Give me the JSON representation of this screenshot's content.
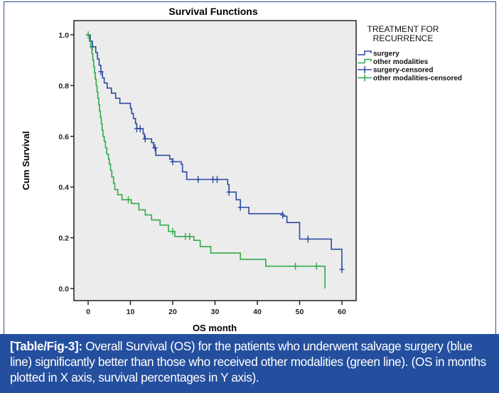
{
  "chart_data": {
    "type": "line",
    "subtype": "kaplan-meier-step",
    "title": "Survival Functions",
    "xlabel": "OS month",
    "ylabel": "Cum Survival",
    "xlim": [
      -3,
      63
    ],
    "ylim": [
      -0.05,
      1.05
    ],
    "xticks": [
      0,
      10,
      20,
      30,
      40,
      50,
      60
    ],
    "xtick_labels": [
      "0",
      "10",
      "20",
      "30",
      "40",
      "50",
      "60"
    ],
    "yticks": [
      0.0,
      0.2,
      0.4,
      0.6,
      0.8,
      1.0
    ],
    "ytick_labels": [
      "0.0",
      "0.2",
      "0.4",
      "0.6",
      "0.8",
      "1.0"
    ],
    "grid": false,
    "legend": {
      "title": "TREATMENT FOR RECURRENCE",
      "position": "right",
      "entries": [
        {
          "label": "surgery",
          "kind": "step",
          "color": "#2b4aa0"
        },
        {
          "label": "other modalities",
          "kind": "step",
          "color": "#2eaa4a"
        },
        {
          "label": "surgery-censored",
          "kind": "censor",
          "color": "#2b4aa0"
        },
        {
          "label": "other modalities-censored",
          "kind": "censor",
          "color": "#2eaa4a"
        }
      ]
    },
    "series": [
      {
        "name": "surgery",
        "color": "#2b4aa0",
        "steps": [
          [
            0,
            1.0
          ],
          [
            0.5,
            0.975
          ],
          [
            1,
            0.953
          ],
          [
            1.8,
            0.93
          ],
          [
            2.2,
            0.905
          ],
          [
            2.6,
            0.88
          ],
          [
            3.0,
            0.855
          ],
          [
            3.4,
            0.83
          ],
          [
            3.8,
            0.81
          ],
          [
            4.5,
            0.79
          ],
          [
            5.5,
            0.77
          ],
          [
            6.5,
            0.75
          ],
          [
            7.5,
            0.73
          ],
          [
            10.0,
            0.71
          ],
          [
            10.3,
            0.69
          ],
          [
            10.7,
            0.67
          ],
          [
            11.2,
            0.65
          ],
          [
            11.5,
            0.63
          ],
          [
            13.0,
            0.61
          ],
          [
            13.3,
            0.59
          ],
          [
            15.0,
            0.575
          ],
          [
            15.5,
            0.555
          ],
          [
            16.0,
            0.525
          ],
          [
            19.3,
            0.51
          ],
          [
            20.0,
            0.5
          ],
          [
            22.0,
            0.49
          ],
          [
            22.3,
            0.46
          ],
          [
            23.3,
            0.43
          ],
          [
            33.0,
            0.41
          ],
          [
            33.3,
            0.38
          ],
          [
            35.0,
            0.35
          ],
          [
            36.0,
            0.32
          ],
          [
            38.0,
            0.295
          ],
          [
            46.0,
            0.285
          ],
          [
            47.0,
            0.26
          ],
          [
            50.0,
            0.195
          ],
          [
            57.5,
            0.155
          ],
          [
            60.0,
            0.075
          ]
        ],
        "end": 60,
        "censored": [
          [
            1.0,
            0.953
          ],
          [
            3.0,
            0.855
          ],
          [
            11.5,
            0.63
          ],
          [
            12.3,
            0.63
          ],
          [
            13.5,
            0.59
          ],
          [
            15.8,
            0.555
          ],
          [
            20.0,
            0.5
          ],
          [
            26.0,
            0.43
          ],
          [
            29.5,
            0.43
          ],
          [
            30.5,
            0.43
          ],
          [
            33.3,
            0.38
          ],
          [
            36.0,
            0.32
          ],
          [
            46.0,
            0.29
          ],
          [
            52.0,
            0.195
          ],
          [
            60.0,
            0.075
          ]
        ]
      },
      {
        "name": "other modalities",
        "color": "#2eaa4a",
        "steps": [
          [
            0,
            1.0
          ],
          [
            0.3,
            0.975
          ],
          [
            0.6,
            0.95
          ],
          [
            0.9,
            0.925
          ],
          [
            1.1,
            0.9
          ],
          [
            1.3,
            0.875
          ],
          [
            1.5,
            0.85
          ],
          [
            1.7,
            0.825
          ],
          [
            1.9,
            0.8
          ],
          [
            2.1,
            0.775
          ],
          [
            2.3,
            0.75
          ],
          [
            2.5,
            0.725
          ],
          [
            2.7,
            0.7
          ],
          [
            2.9,
            0.675
          ],
          [
            3.1,
            0.65
          ],
          [
            3.3,
            0.625
          ],
          [
            3.5,
            0.6
          ],
          [
            3.8,
            0.58
          ],
          [
            4.1,
            0.555
          ],
          [
            4.4,
            0.53
          ],
          [
            4.8,
            0.51
          ],
          [
            5.0,
            0.49
          ],
          [
            5.3,
            0.465
          ],
          [
            5.6,
            0.44
          ],
          [
            6.0,
            0.415
          ],
          [
            6.3,
            0.39
          ],
          [
            7.0,
            0.37
          ],
          [
            8.0,
            0.35
          ],
          [
            10.0,
            0.35
          ],
          [
            10.2,
            0.335
          ],
          [
            12.0,
            0.31
          ],
          [
            13.5,
            0.29
          ],
          [
            15.0,
            0.27
          ],
          [
            17.0,
            0.25
          ],
          [
            19.0,
            0.225
          ],
          [
            20.5,
            0.205
          ],
          [
            25.0,
            0.19
          ],
          [
            26.5,
            0.165
          ],
          [
            29.0,
            0.14
          ],
          [
            36.0,
            0.115
          ],
          [
            42.0,
            0.088
          ],
          [
            56.0,
            0.0
          ]
        ],
        "end": 56,
        "censored": [
          [
            0,
            1.0
          ],
          [
            9.5,
            0.35
          ],
          [
            20.0,
            0.225
          ],
          [
            23.0,
            0.205
          ],
          [
            24.0,
            0.205
          ],
          [
            49.0,
            0.088
          ],
          [
            54.0,
            0.088
          ]
        ]
      }
    ]
  },
  "caption": {
    "label": "[Table/Fig-3]:",
    "text": "Overall Survival (OS) for the patients who underwent salvage surgery (blue line) significantly better than those who received other modalities (green line). (OS in months plotted in X axis, survival percentages in Y axis)."
  }
}
